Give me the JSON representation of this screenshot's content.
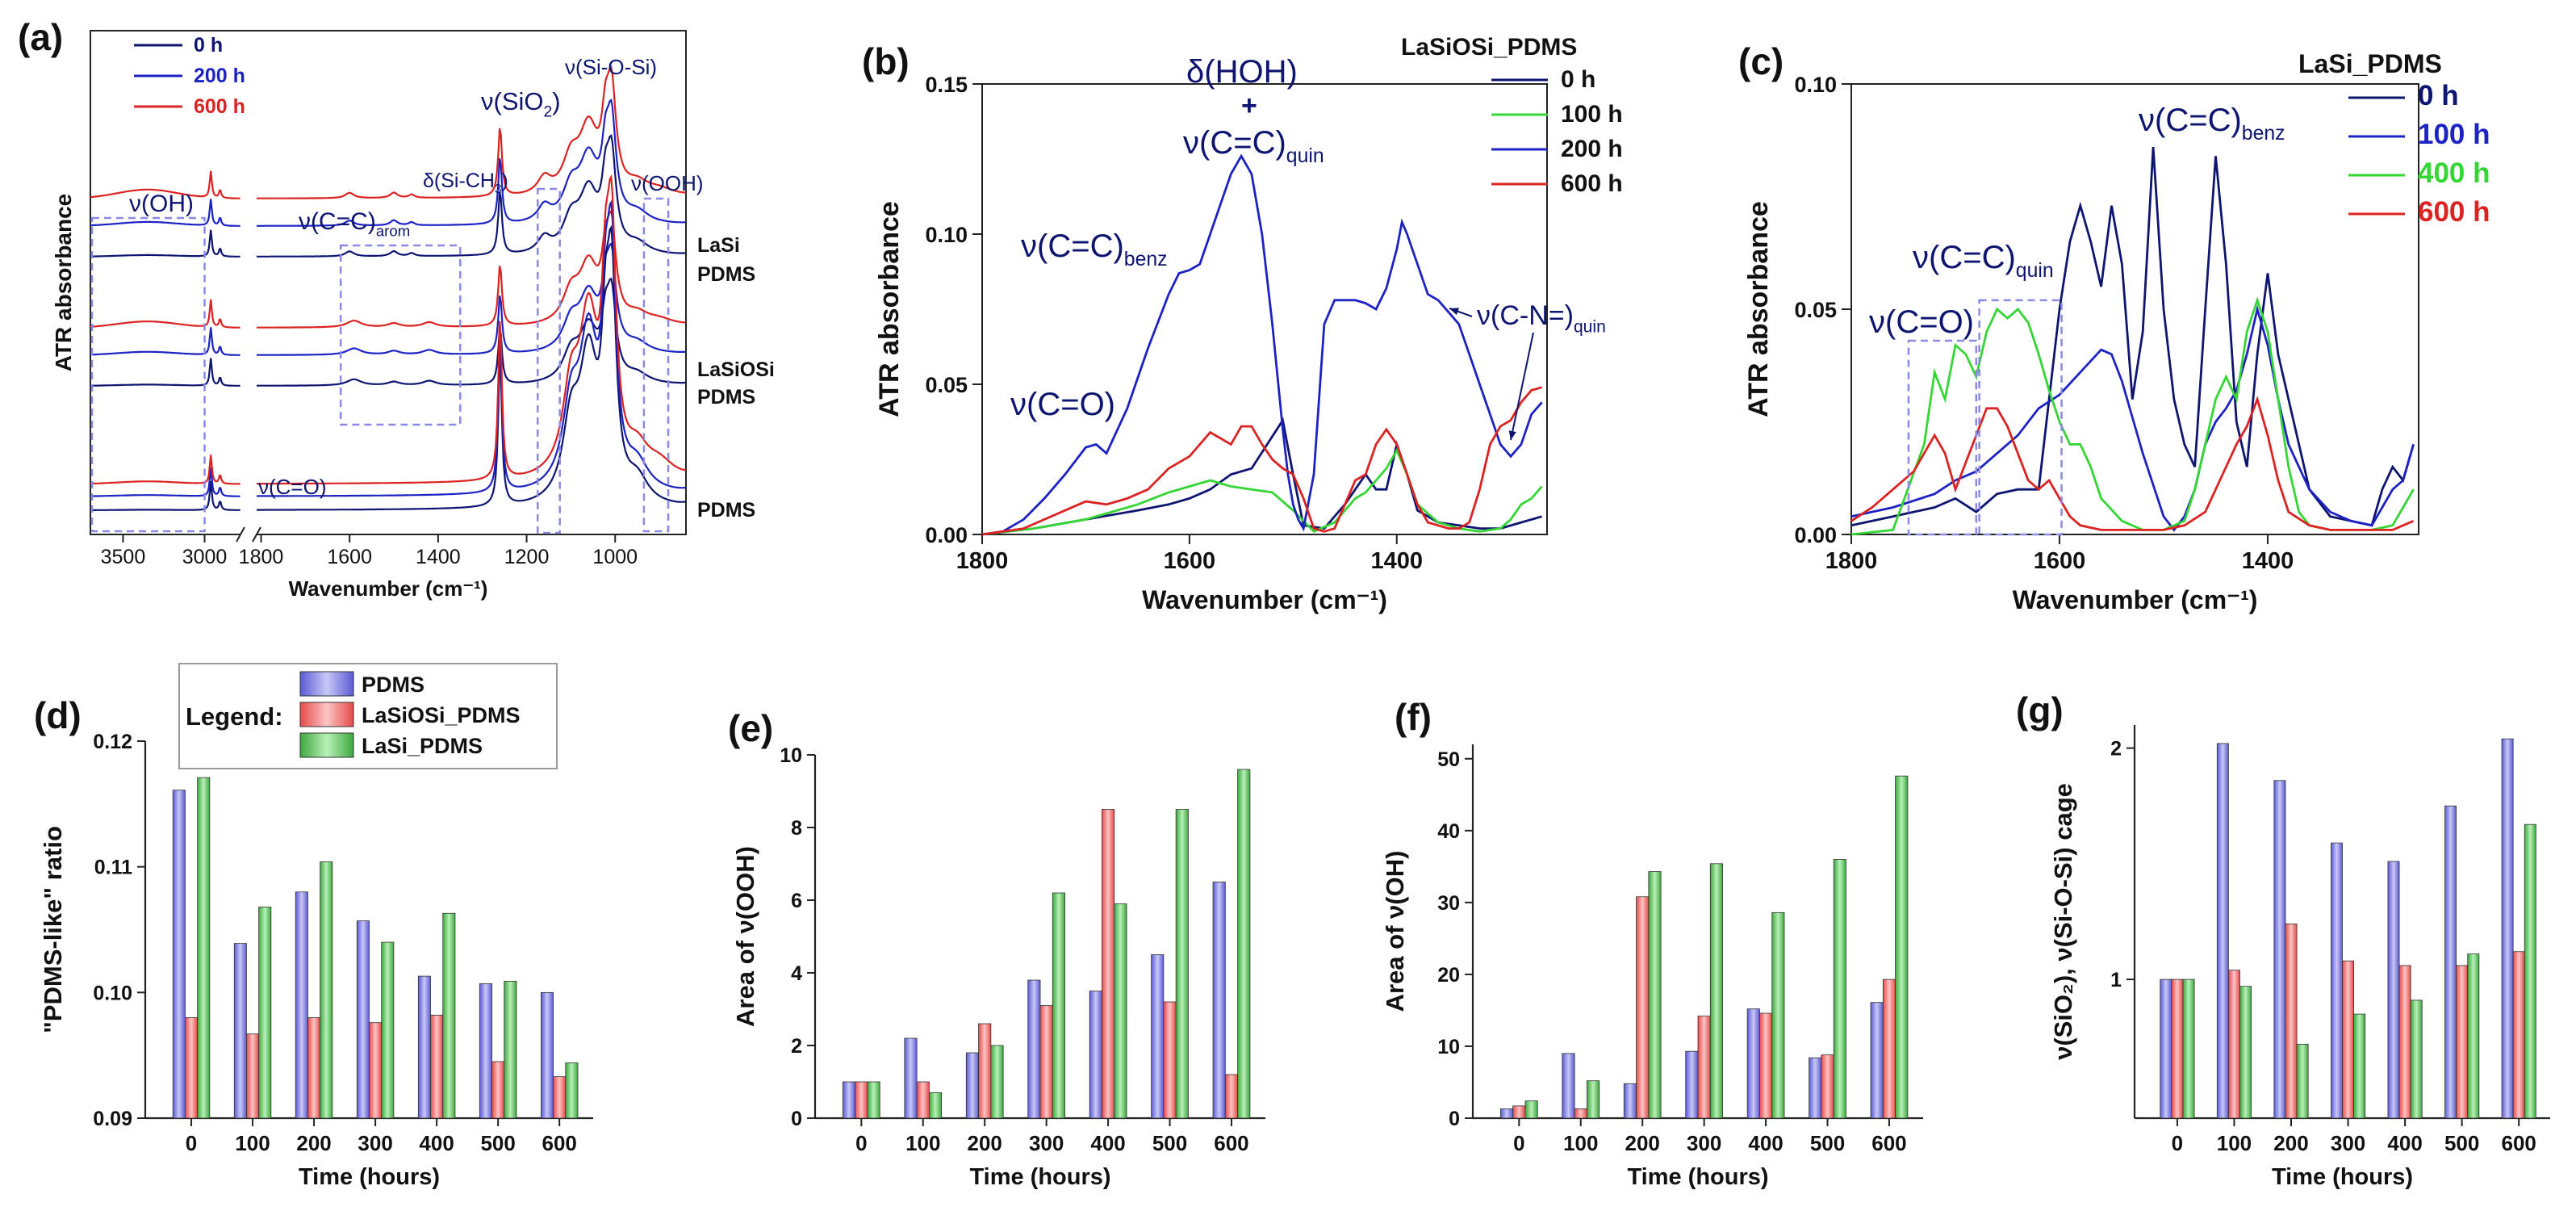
{
  "figure": {
    "kind": "multi-panel FTIR-ATR spectra and bar charts"
  },
  "colors": {
    "navy": "#0d1570",
    "blue": "#1c22c4",
    "green": "#33d633",
    "red": "#dd2222",
    "panel_label": "#111111",
    "box": "#8a8ae6",
    "bar_blue": "#8a8ae6",
    "bar_red": "#f07070",
    "bar_green": "#66cc66"
  },
  "chart_data": [
    {
      "panel": "(a)",
      "type": "line",
      "xlabel": "Wavenumber (cm⁻¹)",
      "ylabel": "ATR absorbance",
      "x_axis_breaks": [
        "3000",
        "1800"
      ],
      "xticks_left": [
        "3500",
        "3000"
      ],
      "xticks_right": [
        "1800",
        "1600",
        "1400",
        "1200",
        "1000"
      ],
      "legend": [
        {
          "name": "0 h",
          "color": "navy"
        },
        {
          "name": "200 h",
          "color": "blue"
        },
        {
          "name": "600 h",
          "color": "red"
        }
      ],
      "sample_labels": [
        "LaSi",
        "PDMS",
        "LaSiOSi",
        "PDMS",
        "PDMS"
      ],
      "annotations": [
        {
          "text": "ν(OH)"
        },
        {
          "text": "ν(C=C)",
          "sub": "arom"
        },
        {
          "text": "δ(Si-CH",
          "sub": "3",
          "after": ")"
        },
        {
          "text": "ν(SiO",
          "sub": "2",
          "after": ")"
        },
        {
          "text": "ν(Si-O-Si)"
        },
        {
          "text": "ν(OOH)"
        },
        {
          "text": "ν(C=O)"
        }
      ],
      "curves_note": "9 spectra: 3 samples (LaSi_PDMS, LaSiOSi_PDMS, PDMS) × 3 times (0, 200, 600 h), vertically offset"
    },
    {
      "panel": "(b)",
      "type": "line",
      "xlabel": "Wavenumber (cm⁻¹)",
      "ylabel": "ATR absorbance",
      "xlim": [
        1800,
        1255
      ],
      "ylim": [
        0,
        0.15
      ],
      "xticks": [
        "1800",
        "1600",
        "1400"
      ],
      "yticks": [
        "0.00",
        "0.05",
        "0.10",
        "0.15"
      ],
      "legend_title": "LaSiOSi_PDMS",
      "annotations": [
        {
          "text": "δ(HOH)"
        },
        {
          "text": "+"
        },
        {
          "text": "ν(C=C)",
          "sub": "quin"
        },
        {
          "text": "ν(C=C)",
          "sub": "benz"
        },
        {
          "text": "ν(C=O)"
        },
        {
          "text": "ν(C-N=)",
          "sub": "quin"
        }
      ],
      "series": [
        {
          "name": "0 h",
          "color": "navy",
          "x": [
            1800,
            1750,
            1700,
            1650,
            1620,
            1600,
            1580,
            1560,
            1540,
            1525,
            1510,
            1500,
            1490,
            1470,
            1450,
            1430,
            1420,
            1410,
            1400,
            1390,
            1380,
            1360,
            1340,
            1320,
            1300,
            1280,
            1260
          ],
          "y": [
            0,
            0.002,
            0.005,
            0.008,
            0.01,
            0.012,
            0.015,
            0.02,
            0.022,
            0.03,
            0.038,
            0.02,
            0.003,
            0.002,
            0.01,
            0.02,
            0.015,
            0.015,
            0.03,
            0.02,
            0.008,
            0.004,
            0.003,
            0.002,
            0.002,
            0.004,
            0.006
          ]
        },
        {
          "name": "100 h",
          "color": "green",
          "x": [
            1800,
            1750,
            1700,
            1650,
            1620,
            1600,
            1580,
            1560,
            1540,
            1520,
            1500,
            1480,
            1460,
            1440,
            1430,
            1420,
            1410,
            1400,
            1390,
            1380,
            1360,
            1340,
            1320,
            1300,
            1290,
            1280,
            1270,
            1260
          ],
          "y": [
            0,
            0.002,
            0.005,
            0.01,
            0.014,
            0.016,
            0.018,
            0.016,
            0.015,
            0.014,
            0.008,
            0.001,
            0.004,
            0.012,
            0.014,
            0.018,
            0.022,
            0.028,
            0.02,
            0.01,
            0.004,
            0.002,
            0.001,
            0.002,
            0.005,
            0.01,
            0.012,
            0.016
          ]
        },
        {
          "name": "200 h",
          "color": "blue",
          "x": [
            1800,
            1780,
            1760,
            1740,
            1720,
            1700,
            1690,
            1680,
            1660,
            1640,
            1620,
            1610,
            1600,
            1590,
            1580,
            1570,
            1560,
            1550,
            1540,
            1530,
            1520,
            1510,
            1505,
            1500,
            1495,
            1490,
            1480,
            1470,
            1460,
            1450,
            1440,
            1430,
            1420,
            1410,
            1400,
            1395,
            1390,
            1380,
            1370,
            1360,
            1350,
            1340,
            1330,
            1320,
            1310,
            1300,
            1290,
            1280,
            1270,
            1260
          ],
          "y": [
            0,
            0.001,
            0.005,
            0.012,
            0.02,
            0.029,
            0.03,
            0.027,
            0.042,
            0.062,
            0.08,
            0.087,
            0.088,
            0.09,
            0.1,
            0.11,
            0.12,
            0.126,
            0.12,
            0.1,
            0.07,
            0.035,
            0.02,
            0.01,
            0.005,
            0.002,
            0.02,
            0.07,
            0.078,
            0.078,
            0.078,
            0.077,
            0.075,
            0.082,
            0.095,
            0.104,
            0.1,
            0.09,
            0.08,
            0.078,
            0.074,
            0.07,
            0.06,
            0.05,
            0.04,
            0.03,
            0.026,
            0.03,
            0.04,
            0.044
          ]
        },
        {
          "name": "600 h",
          "color": "red",
          "x": [
            1800,
            1760,
            1720,
            1700,
            1680,
            1660,
            1640,
            1620,
            1600,
            1580,
            1560,
            1550,
            1540,
            1530,
            1520,
            1510,
            1500,
            1490,
            1480,
            1470,
            1460,
            1450,
            1440,
            1430,
            1420,
            1410,
            1400,
            1390,
            1380,
            1370,
            1360,
            1350,
            1340,
            1330,
            1320,
            1310,
            1300,
            1290,
            1280,
            1270,
            1260
          ],
          "y": [
            0,
            0.002,
            0.008,
            0.011,
            0.01,
            0.012,
            0.015,
            0.022,
            0.026,
            0.034,
            0.03,
            0.036,
            0.036,
            0.03,
            0.025,
            0.022,
            0.02,
            0.012,
            0.002,
            0.001,
            0.002,
            0.01,
            0.018,
            0.02,
            0.03,
            0.035,
            0.03,
            0.02,
            0.01,
            0.004,
            0.003,
            0.002,
            0.002,
            0.004,
            0.015,
            0.03,
            0.036,
            0.038,
            0.044,
            0.048,
            0.049
          ]
        }
      ]
    },
    {
      "panel": "(c)",
      "type": "line",
      "xlabel": "Wavenumber (cm⁻¹)",
      "ylabel": "ATR absorbance",
      "xlim": [
        1800,
        1255
      ],
      "ylim": [
        0,
        0.1
      ],
      "xticks": [
        "1800",
        "1600",
        "1400"
      ],
      "yticks": [
        "0.00",
        "0.05",
        "0.10"
      ],
      "legend_title": "LaSi_PDMS",
      "annotations": [
        {
          "text": "ν(C=C)",
          "sub": "benz"
        },
        {
          "text": "ν(C=C)",
          "sub": "quin"
        },
        {
          "text": "ν(C=O)"
        }
      ],
      "series": [
        {
          "name": "0 h",
          "color": "navy",
          "x": [
            1800,
            1760,
            1720,
            1700,
            1680,
            1660,
            1640,
            1620,
            1610,
            1600,
            1590,
            1580,
            1570,
            1560,
            1550,
            1540,
            1530,
            1520,
            1510,
            1500,
            1490,
            1480,
            1470,
            1460,
            1450,
            1440,
            1430,
            1420,
            1410,
            1400,
            1390,
            1380,
            1370,
            1360,
            1340,
            1320,
            1300,
            1290,
            1280,
            1270,
            1260
          ],
          "y": [
            0.002,
            0.004,
            0.006,
            0.008,
            0.005,
            0.009,
            0.01,
            0.01,
            0.03,
            0.05,
            0.065,
            0.073,
            0.065,
            0.055,
            0.073,
            0.06,
            0.03,
            0.045,
            0.086,
            0.05,
            0.03,
            0.02,
            0.015,
            0.05,
            0.084,
            0.06,
            0.025,
            0.015,
            0.04,
            0.058,
            0.04,
            0.03,
            0.02,
            0.01,
            0.004,
            0.003,
            0.002,
            0.01,
            0.015,
            0.012,
            0.02
          ]
        },
        {
          "name": "100 h",
          "color": "blue",
          "x": [
            1800,
            1760,
            1720,
            1700,
            1680,
            1660,
            1640,
            1620,
            1600,
            1580,
            1560,
            1550,
            1540,
            1520,
            1500,
            1490,
            1480,
            1470,
            1460,
            1450,
            1440,
            1430,
            1420,
            1410,
            1400,
            1390,
            1380,
            1370,
            1360,
            1340,
            1320,
            1300,
            1280,
            1270,
            1260
          ],
          "y": [
            0.004,
            0.006,
            0.009,
            0.012,
            0.014,
            0.018,
            0.022,
            0.028,
            0.031,
            0.036,
            0.041,
            0.04,
            0.034,
            0.018,
            0.004,
            0.001,
            0.004,
            0.01,
            0.02,
            0.025,
            0.028,
            0.032,
            0.04,
            0.05,
            0.042,
            0.03,
            0.02,
            0.015,
            0.01,
            0.005,
            0.003,
            0.002,
            0.01,
            0.012,
            0.02
          ]
        },
        {
          "name": "400 h",
          "color": "green",
          "x": [
            1800,
            1760,
            1730,
            1720,
            1710,
            1700,
            1690,
            1680,
            1670,
            1660,
            1650,
            1640,
            1630,
            1620,
            1610,
            1600,
            1590,
            1580,
            1570,
            1560,
            1540,
            1520,
            1500,
            1480,
            1470,
            1460,
            1450,
            1440,
            1430,
            1420,
            1410,
            1400,
            1390,
            1380,
            1370,
            1360,
            1340,
            1320,
            1300,
            1280,
            1270,
            1260
          ],
          "y": [
            0,
            0.001,
            0.02,
            0.036,
            0.03,
            0.042,
            0.04,
            0.035,
            0.045,
            0.05,
            0.048,
            0.05,
            0.047,
            0.04,
            0.032,
            0.025,
            0.02,
            0.02,
            0.015,
            0.008,
            0.003,
            0.001,
            0.001,
            0.003,
            0.01,
            0.02,
            0.03,
            0.035,
            0.03,
            0.045,
            0.052,
            0.045,
            0.03,
            0.015,
            0.005,
            0.002,
            0.001,
            0.001,
            0.001,
            0.002,
            0.006,
            0.01
          ]
        },
        {
          "name": "600 h",
          "color": "red",
          "x": [
            1800,
            1780,
            1760,
            1740,
            1720,
            1710,
            1700,
            1690,
            1680,
            1670,
            1660,
            1650,
            1640,
            1630,
            1620,
            1610,
            1600,
            1590,
            1580,
            1560,
            1540,
            1520,
            1500,
            1480,
            1460,
            1450,
            1440,
            1430,
            1420,
            1410,
            1400,
            1390,
            1380,
            1360,
            1340,
            1320,
            1300,
            1280,
            1270,
            1260
          ],
          "y": [
            0.003,
            0.006,
            0.01,
            0.014,
            0.022,
            0.018,
            0.01,
            0.016,
            0.022,
            0.028,
            0.028,
            0.024,
            0.018,
            0.012,
            0.01,
            0.012,
            0.008,
            0.004,
            0.002,
            0.001,
            0.001,
            0.001,
            0.001,
            0.002,
            0.005,
            0.01,
            0.015,
            0.02,
            0.024,
            0.03,
            0.022,
            0.012,
            0.005,
            0.002,
            0.001,
            0.001,
            0.001,
            0.001,
            0.002,
            0.003
          ]
        }
      ]
    },
    {
      "panel": "(d)",
      "type": "bar",
      "xlabel": "Time (hours)",
      "ylabel": "\"PDMS-like\" ratio",
      "ylim": [
        0.09,
        0.12
      ],
      "yticks": [
        "0.09",
        "0.10",
        "0.11",
        "0.12"
      ],
      "categories": [
        "0",
        "100",
        "200",
        "300",
        "400",
        "500",
        "600"
      ],
      "legend_title": "Legend:",
      "series": [
        {
          "name": "PDMS",
          "color": "bar_blue",
          "values": [
            0.1161,
            0.1039,
            0.108,
            0.1057,
            0.1013,
            0.1007,
            0.1
          ]
        },
        {
          "name": "LaSiOSi_PDMS",
          "color": "bar_red",
          "values": [
            0.098,
            0.0967,
            0.098,
            0.0976,
            0.0982,
            0.0945,
            0.0933
          ]
        },
        {
          "name": "LaSi_PDMS",
          "color": "bar_green",
          "values": [
            0.1171,
            0.1068,
            0.1104,
            0.104,
            0.1063,
            0.1009,
            0.0944
          ]
        }
      ]
    },
    {
      "panel": "(e)",
      "type": "bar",
      "xlabel": "Time (hours)",
      "ylabel": "Area of ν(OOH)",
      "ylim": [
        0,
        10
      ],
      "yticks": [
        "0",
        "2",
        "4",
        "6",
        "8",
        "10"
      ],
      "categories": [
        "0",
        "100",
        "200",
        "300",
        "400",
        "500",
        "600"
      ],
      "series": [
        {
          "color": "bar_blue",
          "values": [
            1.0,
            2.2,
            1.8,
            3.8,
            3.5,
            4.5,
            6.5
          ]
        },
        {
          "color": "bar_red",
          "values": [
            1.0,
            1.0,
            2.6,
            3.1,
            8.5,
            3.2,
            1.2
          ]
        },
        {
          "color": "bar_green",
          "values": [
            1.0,
            0.7,
            2.0,
            6.2,
            5.9,
            8.5,
            9.6
          ]
        }
      ]
    },
    {
      "panel": "(f)",
      "type": "bar",
      "xlabel": "Time (hours)",
      "ylabel": "Area of ν(OH)",
      "ylim": [
        0,
        52
      ],
      "yticks": [
        "0",
        "10",
        "20",
        "30",
        "40",
        "50"
      ],
      "categories": [
        "0",
        "100",
        "200",
        "300",
        "400",
        "500",
        "600"
      ],
      "series": [
        {
          "color": "bar_blue",
          "values": [
            1.3,
            9.0,
            4.8,
            9.3,
            15.2,
            8.4,
            16.1
          ]
        },
        {
          "color": "bar_red",
          "values": [
            1.7,
            1.3,
            30.8,
            14.2,
            14.6,
            8.8,
            19.3
          ]
        },
        {
          "color": "bar_green",
          "values": [
            2.4,
            5.2,
            34.3,
            35.4,
            28.6,
            36.0,
            47.6
          ]
        }
      ]
    },
    {
      "panel": "(g)",
      "type": "bar",
      "xlabel": "Time (hours)",
      "ylabel": "ν(SiO₂), ν(Si-O-Si) cage",
      "ylim": [
        0.4,
        2.1
      ],
      "yticks": [
        "1",
        "2"
      ],
      "categories": [
        "0",
        "100",
        "200",
        "300",
        "400",
        "500",
        "600"
      ],
      "series": [
        {
          "color": "bar_blue",
          "values": [
            1.0,
            2.02,
            1.86,
            1.59,
            1.51,
            1.75,
            2.04
          ]
        },
        {
          "color": "bar_red",
          "values": [
            1.0,
            1.04,
            1.24,
            1.08,
            1.06,
            1.06,
            1.12
          ]
        },
        {
          "color": "bar_green",
          "values": [
            1.0,
            0.97,
            0.72,
            0.85,
            0.91,
            1.11,
            1.67
          ]
        }
      ]
    }
  ]
}
